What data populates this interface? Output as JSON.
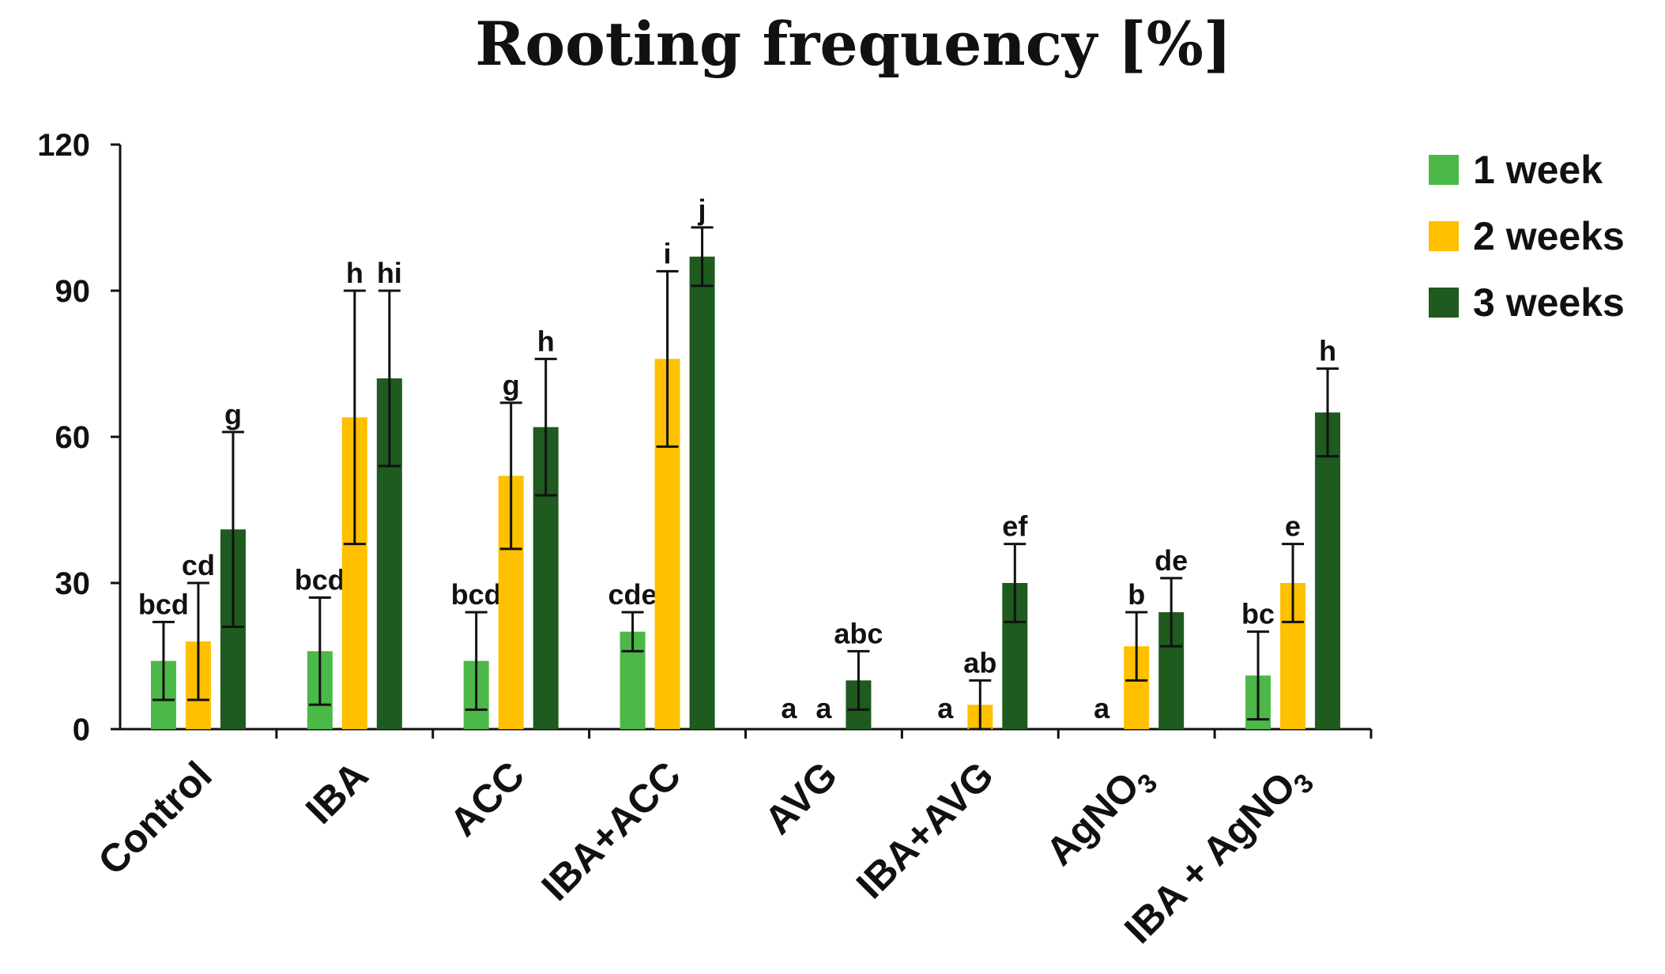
{
  "chart_data": {
    "type": "bar",
    "title": "Rooting frequency [%]",
    "xlabel": "",
    "ylabel": "",
    "ylim": [
      0,
      120
    ],
    "yticks": [
      0,
      30,
      60,
      90,
      120
    ],
    "grid": false,
    "legend_position": "top-right",
    "categories": [
      {
        "label": "Control",
        "subscript": ""
      },
      {
        "label": "IBA",
        "subscript": ""
      },
      {
        "label": "ACC",
        "subscript": ""
      },
      {
        "label": "IBA+ACC",
        "subscript": ""
      },
      {
        "label": "AVG",
        "subscript": ""
      },
      {
        "label": "IBA+AVG",
        "subscript": ""
      },
      {
        "label": "AgNO",
        "subscript": "3"
      },
      {
        "label": "IBA + AgNO",
        "subscript": "3"
      }
    ],
    "series": [
      {
        "name": "1 week",
        "color": "#4cb847",
        "values": [
          14,
          16,
          14,
          20,
          0,
          0,
          0,
          11
        ],
        "errors": [
          8,
          11,
          10,
          4,
          0,
          0,
          0,
          9
        ],
        "letters": [
          "bcd",
          "bcd",
          "bcd",
          "cde",
          "a",
          "a",
          "a",
          "bc"
        ]
      },
      {
        "name": "2 weeks",
        "color": "#ffc000",
        "values": [
          18,
          64,
          52,
          76,
          0,
          5,
          17,
          30
        ],
        "errors": [
          12,
          26,
          15,
          18,
          0,
          5,
          7,
          8
        ],
        "letters": [
          "cd",
          "h",
          "g",
          "i",
          "a",
          "ab",
          "b",
          "e"
        ]
      },
      {
        "name": "3 weeks",
        "color": "#1f5a1f",
        "values": [
          41,
          72,
          62,
          97,
          10,
          30,
          24,
          65
        ],
        "errors": [
          20,
          18,
          14,
          6,
          6,
          8,
          7,
          9
        ],
        "letters": [
          "g",
          "hi",
          "h",
          "j",
          "abc",
          "ef",
          "de",
          "h"
        ]
      }
    ]
  },
  "colors": {
    "axis": "#111111",
    "error_bar": "#111111",
    "background": "#ffffff"
  }
}
